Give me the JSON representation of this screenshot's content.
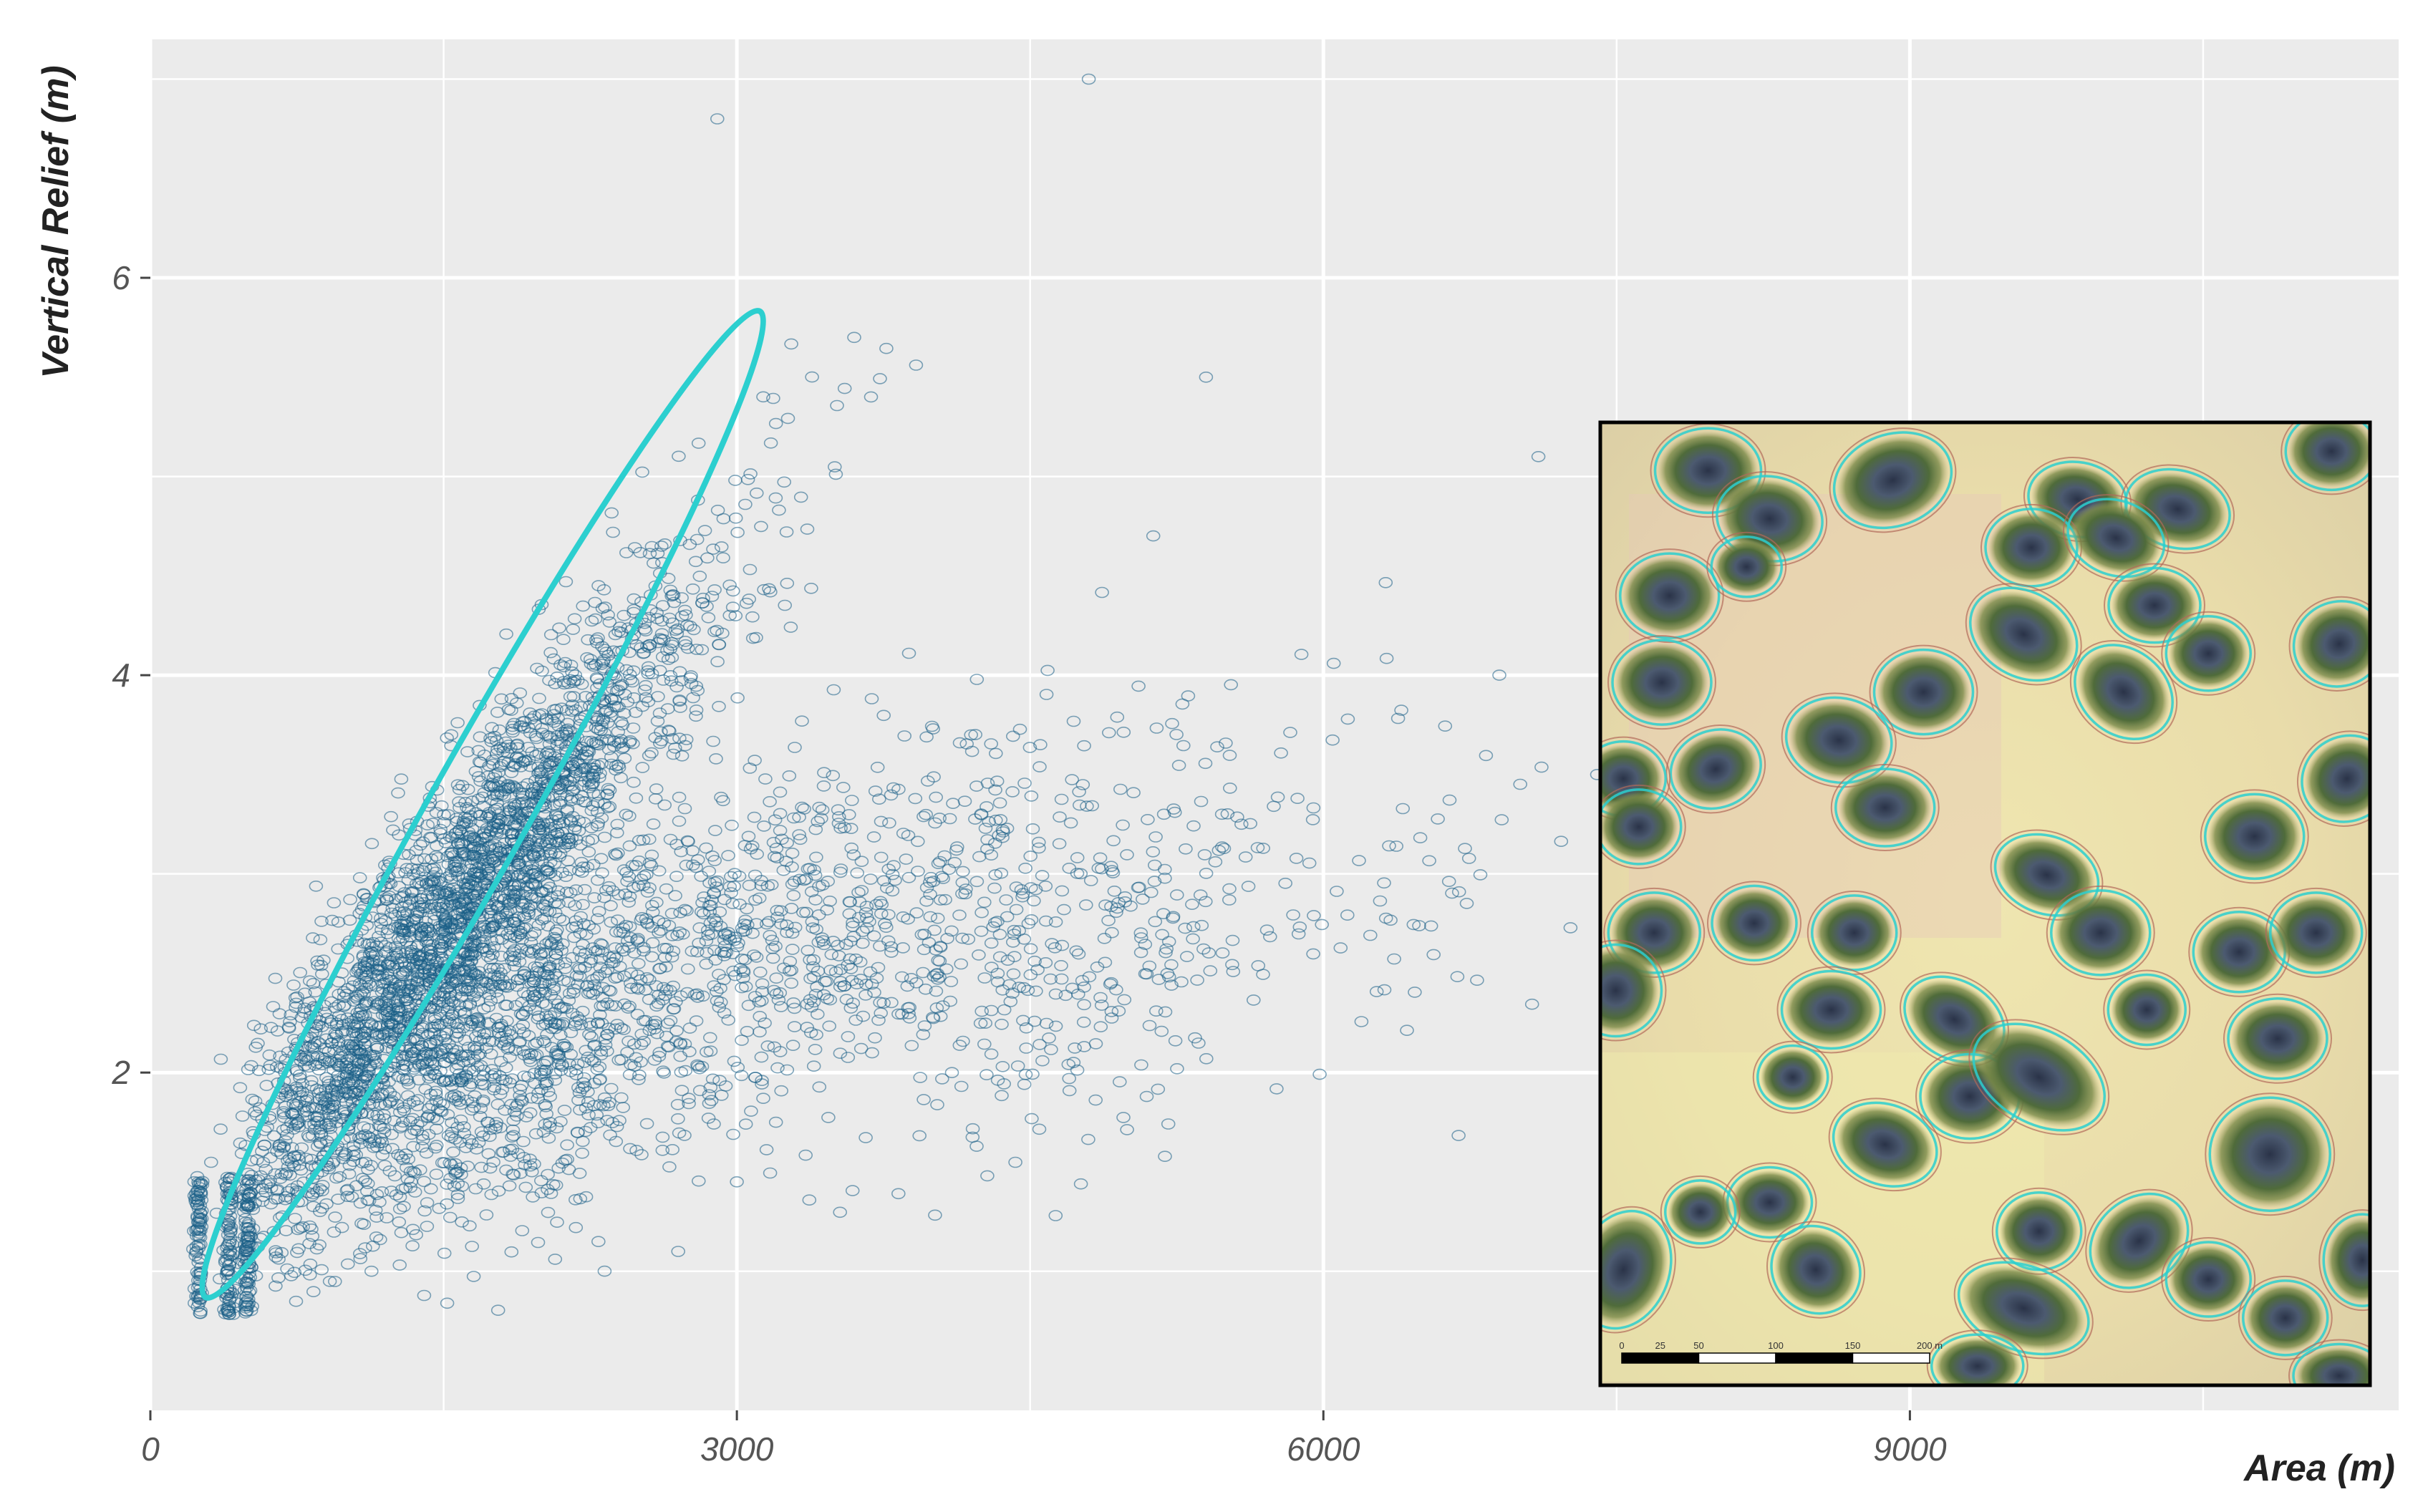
{
  "chart_data": {
    "type": "scatter",
    "title": "",
    "xlabel": "Area (m)",
    "ylabel": "Vertical Relief (m)",
    "xlim": [
      0,
      11500
    ],
    "ylim": [
      0.3,
      7.2
    ],
    "x_ticks": [
      0,
      3000,
      6000,
      9000
    ],
    "x_tick_labels": [
      "0",
      "3000",
      "6000",
      "9000"
    ],
    "y_ticks": [
      2,
      4,
      6
    ],
    "y_tick_labels": [
      "2",
      "4",
      "6"
    ],
    "grid": true,
    "marker": "open-circle",
    "point_color": "#1a5f86",
    "background_color": "#ebebeb",
    "highlight_ellipse": {
      "color": "#2ccfcf",
      "description_points": [
        [
          300,
          0.9
        ],
        [
          3100,
          5.8
        ]
      ]
    },
    "clusters": [
      {
        "name": "",
        "center": [
          1500,
          2.7
        ],
        "spread": [
          600,
          0.8
        ],
        "count": 2600
      },
      {
        "name": "",
        "center": [
          2600,
          2.6
        ],
        "spread": [
          1100,
          0.7
        ],
        "count": 1600
      },
      {
        "name": "",
        "center": [
          4300,
          3.0
        ],
        "spread": [
          1300,
          0.6
        ],
        "count": 500
      }
    ],
    "notable_points": [
      {
        "x": 2900,
        "y": 6.8
      },
      {
        "x": 4800,
        "y": 7.0
      },
      {
        "x": 3600,
        "y": 5.7
      },
      {
        "x": 5400,
        "y": 5.5
      },
      {
        "x": 7100,
        "y": 5.1
      },
      {
        "x": 6900,
        "y": 4.0
      },
      {
        "x": 7400,
        "y": 3.5
      },
      {
        "x": 2700,
        "y": 1.1
      },
      {
        "x": 3000,
        "y": 1.45
      },
      {
        "x": 3200,
        "y": 1.75
      },
      {
        "x": 4100,
        "y": 2.0
      }
    ],
    "inset": {
      "description": "aerial map inset with circled features",
      "scale_bar_labels": [
        "0",
        "25",
        "50",
        "100",
        "150",
        "200 m"
      ]
    }
  }
}
